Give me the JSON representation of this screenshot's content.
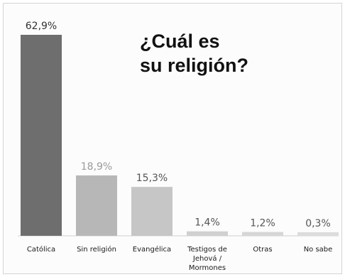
{
  "chart_data": {
    "type": "bar",
    "title": "¿Cuál es\nsu religión?",
    "categories": [
      "Católica",
      "Sin religión",
      "Evangélica",
      "Testigos de Jehová / Mormones",
      "Otras",
      "No sabe"
    ],
    "category_lines": [
      [
        "Católica"
      ],
      [
        "Sin religión"
      ],
      [
        "Evangélica"
      ],
      [
        "Testigos de",
        "Jehová /",
        "Mormones"
      ],
      [
        "Otras"
      ],
      [
        "No sabe"
      ]
    ],
    "values": [
      62.9,
      18.9,
      15.3,
      1.4,
      1.2,
      0.3
    ],
    "value_labels": [
      "62,9%",
      "18,9%",
      "15,3%",
      "1,4%",
      "1,2%",
      "0,3%"
    ],
    "bar_colors": [
      "#6e6e6e",
      "#b7b7b7",
      "#c6c6c6",
      "#d0d0d0",
      "#d6d6d6",
      "#dcdcdc"
    ],
    "label_colors": [
      "#333333",
      "#9a9a9a",
      "#555555",
      "#555555",
      "#555555",
      "#555555"
    ],
    "ylim": [
      0,
      62.9
    ],
    "xlabel": "",
    "ylabel": "",
    "grid": false,
    "legend": "none"
  }
}
